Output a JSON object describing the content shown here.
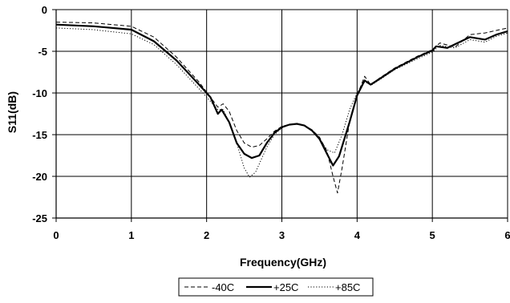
{
  "chart_data": {
    "type": "line",
    "title": "",
    "xlabel": "Frequency(GHz)",
    "ylabel": "S11(dB)",
    "xlim": [
      0,
      6
    ],
    "ylim": [
      -25,
      0
    ],
    "x_ticks": [
      "0",
      "1",
      "2",
      "3",
      "4",
      "5",
      "6"
    ],
    "y_ticks": [
      "0",
      "-5",
      "-10",
      "-15",
      "-20",
      "-25"
    ],
    "grid": true,
    "legend_position": "bottom",
    "series": [
      {
        "name": "-40C",
        "style": "dashed",
        "points": [
          [
            0,
            -1.5
          ],
          [
            0.5,
            -1.6
          ],
          [
            1.0,
            -2.0
          ],
          [
            1.3,
            -3.3
          ],
          [
            1.6,
            -5.7
          ],
          [
            1.9,
            -8.7
          ],
          [
            2.05,
            -10.5
          ],
          [
            2.15,
            -11.7
          ],
          [
            2.22,
            -11.3
          ],
          [
            2.3,
            -12.2
          ],
          [
            2.4,
            -14.5
          ],
          [
            2.5,
            -16.0
          ],
          [
            2.6,
            -16.5
          ],
          [
            2.7,
            -16.3
          ],
          [
            2.8,
            -15.5
          ],
          [
            2.9,
            -14.6
          ],
          [
            3.0,
            -14.0
          ],
          [
            3.1,
            -13.8
          ],
          [
            3.2,
            -13.7
          ],
          [
            3.3,
            -13.9
          ],
          [
            3.4,
            -14.4
          ],
          [
            3.5,
            -15.3
          ],
          [
            3.6,
            -17.0
          ],
          [
            3.68,
            -20.0
          ],
          [
            3.74,
            -22.0
          ],
          [
            3.8,
            -19.0
          ],
          [
            3.9,
            -13.5
          ],
          [
            4.0,
            -10.3
          ],
          [
            4.1,
            -8.0
          ],
          [
            4.18,
            -9.0
          ],
          [
            4.3,
            -8.2
          ],
          [
            4.5,
            -7.0
          ],
          [
            4.8,
            -5.6
          ],
          [
            5.0,
            -4.8
          ],
          [
            5.1,
            -4.0
          ],
          [
            5.3,
            -4.5
          ],
          [
            5.5,
            -3.0
          ],
          [
            5.7,
            -2.8
          ],
          [
            5.85,
            -2.5
          ],
          [
            6.0,
            -2.2
          ]
        ]
      },
      {
        "name": "+25C",
        "style": "solid",
        "points": [
          [
            0,
            -1.8
          ],
          [
            0.5,
            -2.0
          ],
          [
            1.0,
            -2.4
          ],
          [
            1.3,
            -3.8
          ],
          [
            1.6,
            -6.1
          ],
          [
            1.9,
            -9.0
          ],
          [
            2.05,
            -10.5
          ],
          [
            2.15,
            -12.5
          ],
          [
            2.2,
            -12.0
          ],
          [
            2.3,
            -13.5
          ],
          [
            2.4,
            -16.0
          ],
          [
            2.5,
            -17.3
          ],
          [
            2.6,
            -17.8
          ],
          [
            2.7,
            -17.5
          ],
          [
            2.8,
            -16.0
          ],
          [
            2.9,
            -14.8
          ],
          [
            3.0,
            -14.1
          ],
          [
            3.1,
            -13.8
          ],
          [
            3.2,
            -13.7
          ],
          [
            3.3,
            -13.9
          ],
          [
            3.4,
            -14.5
          ],
          [
            3.5,
            -15.5
          ],
          [
            3.6,
            -17.3
          ],
          [
            3.68,
            -18.7
          ],
          [
            3.76,
            -17.6
          ],
          [
            3.9,
            -13.5
          ],
          [
            4.0,
            -10.3
          ],
          [
            4.1,
            -8.5
          ],
          [
            4.18,
            -9.0
          ],
          [
            4.3,
            -8.3
          ],
          [
            4.5,
            -7.1
          ],
          [
            4.8,
            -5.7
          ],
          [
            5.0,
            -4.9
          ],
          [
            5.05,
            -4.4
          ],
          [
            5.2,
            -4.6
          ],
          [
            5.5,
            -3.3
          ],
          [
            5.7,
            -3.6
          ],
          [
            5.85,
            -3.0
          ],
          [
            6.0,
            -2.6
          ]
        ]
      },
      {
        "name": "+85C",
        "style": "dotted",
        "points": [
          [
            0,
            -2.2
          ],
          [
            0.5,
            -2.4
          ],
          [
            1.0,
            -2.9
          ],
          [
            1.3,
            -4.2
          ],
          [
            1.6,
            -6.6
          ],
          [
            1.9,
            -9.5
          ],
          [
            2.05,
            -11.0
          ],
          [
            2.15,
            -12.0
          ],
          [
            2.22,
            -12.0
          ],
          [
            2.3,
            -13.5
          ],
          [
            2.4,
            -16.0
          ],
          [
            2.5,
            -19.0
          ],
          [
            2.57,
            -20.1
          ],
          [
            2.65,
            -19.5
          ],
          [
            2.8,
            -16.5
          ],
          [
            2.9,
            -15.0
          ],
          [
            3.0,
            -14.2
          ],
          [
            3.1,
            -13.8
          ],
          [
            3.2,
            -13.7
          ],
          [
            3.3,
            -13.9
          ],
          [
            3.4,
            -14.5
          ],
          [
            3.5,
            -15.5
          ],
          [
            3.6,
            -16.8
          ],
          [
            3.7,
            -17.2
          ],
          [
            3.8,
            -15.0
          ],
          [
            3.9,
            -12.0
          ],
          [
            4.0,
            -10.0
          ],
          [
            4.1,
            -8.7
          ],
          [
            4.2,
            -9.0
          ],
          [
            4.3,
            -8.4
          ],
          [
            4.5,
            -7.2
          ],
          [
            4.8,
            -5.9
          ],
          [
            5.0,
            -5.1
          ],
          [
            5.1,
            -4.3
          ],
          [
            5.3,
            -4.6
          ],
          [
            5.5,
            -3.6
          ],
          [
            5.7,
            -3.9
          ],
          [
            5.85,
            -3.2
          ],
          [
            6.0,
            -2.8
          ]
        ]
      }
    ]
  }
}
